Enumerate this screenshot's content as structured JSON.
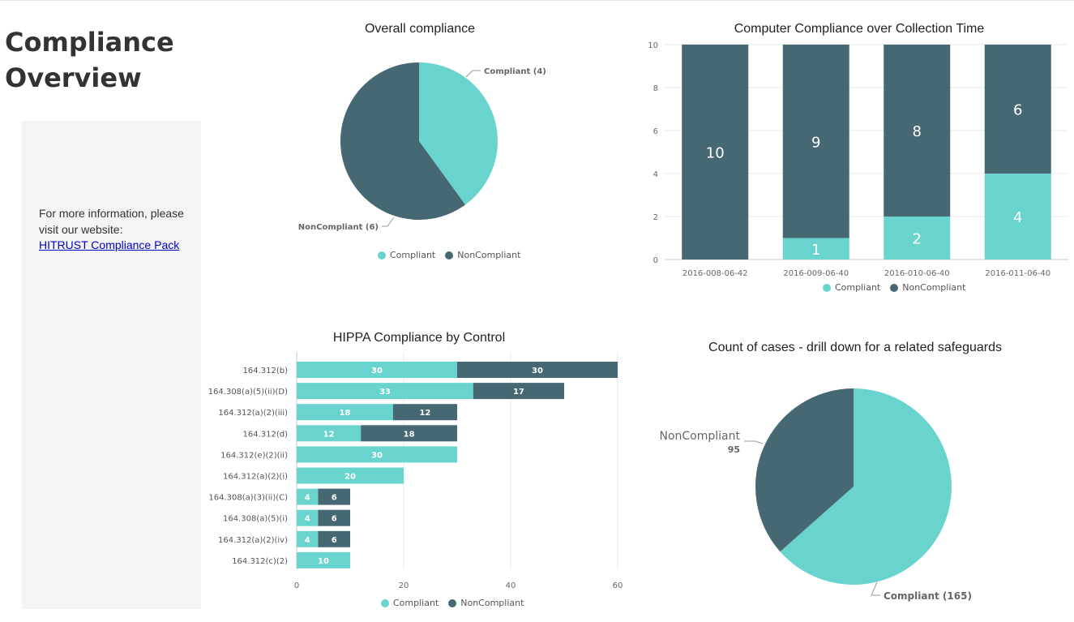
{
  "page": {
    "title": "Compliance Overview",
    "info_text": "For more information, please visit our website:",
    "info_link": "HITRUST Compliance Pack"
  },
  "colors": {
    "compliant": "#69d4cd",
    "noncompliant": "#456872",
    "grid": "#e8e8e8",
    "axis": "#c8c8c8",
    "text": "#666666"
  },
  "legend": {
    "compliant": "Compliant",
    "noncompliant": "NonCompliant"
  },
  "chart_data": [
    {
      "id": "overall",
      "type": "pie",
      "title": "Overall compliance",
      "slices": [
        {
          "label": "Compliant",
          "value": 4,
          "display": "Compliant (4)"
        },
        {
          "label": "NonCompliant",
          "value": 6,
          "display": "NonCompliant (6)"
        }
      ]
    },
    {
      "id": "over_time",
      "type": "bar",
      "stacked": true,
      "title": "Computer Compliance over Collection Time",
      "categories": [
        "2016-008-06-42",
        "2016-009-06-40",
        "2016-010-06-40",
        "2016-011-06-40"
      ],
      "series": [
        {
          "name": "Compliant",
          "values": [
            0,
            1,
            2,
            4
          ]
        },
        {
          "name": "NonCompliant",
          "values": [
            10,
            9,
            8,
            6
          ]
        }
      ],
      "ylim": [
        0,
        10
      ],
      "yticks": [
        0,
        2,
        4,
        6,
        8,
        10
      ],
      "grid": true
    },
    {
      "id": "hippa",
      "type": "bar",
      "orientation": "horizontal",
      "stacked": true,
      "title": "HIPPA Compliance by Control",
      "categories": [
        "164.312(b)",
        "164.308(a)(5)(ii)(D)",
        "164.312(a)(2)(iii)",
        "164.312(d)",
        "164.312(e)(2)(ii)",
        "164.312(a)(2)(i)",
        "164.308(a)(3)(ii)(C)",
        "164.308(a)(5)(i)",
        "164.312(a)(2)(iv)",
        "164.312(c)(2)"
      ],
      "series": [
        {
          "name": "Compliant",
          "values": [
            30,
            33,
            18,
            12,
            30,
            20,
            4,
            4,
            4,
            10
          ]
        },
        {
          "name": "NonCompliant",
          "values": [
            30,
            17,
            12,
            18,
            0,
            0,
            6,
            6,
            6,
            0
          ]
        }
      ],
      "xlim": [
        0,
        60
      ],
      "xticks": [
        0,
        20,
        40,
        60
      ],
      "grid": true
    },
    {
      "id": "cases",
      "type": "pie",
      "title": "Count of cases - drill down for a related safeguards",
      "slices": [
        {
          "label": "Compliant",
          "value": 165,
          "display": "Compliant (165)"
        },
        {
          "label": "NonCompliant",
          "value": 95,
          "display_name": "NonCompliant",
          "display_value": "95"
        }
      ]
    }
  ]
}
